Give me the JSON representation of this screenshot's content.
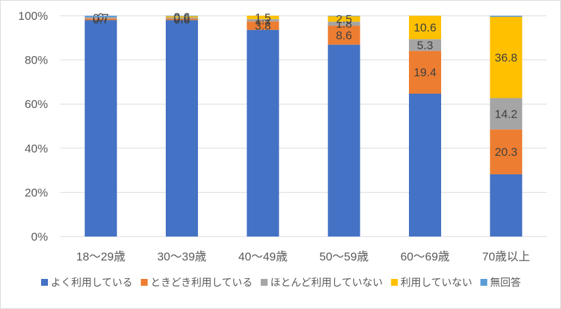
{
  "chart_data": {
    "type": "bar",
    "stacked": true,
    "percent": true,
    "categories": [
      "18～29歳",
      "30～39歳",
      "40～49歳",
      "50～59歳",
      "60～69歳",
      "70歳以上"
    ],
    "series": [
      {
        "name": "よく利用している",
        "color": "#4472C4",
        "values": [
          98.0,
          98.0,
          93.6,
          86.9,
          64.7,
          28.2
        ],
        "labels": [
          "",
          "",
          "",
          "",
          "",
          ""
        ]
      },
      {
        "name": "ときどき利用している",
        "color": "#ED7D31",
        "values": [
          0.7,
          0.6,
          3.8,
          8.6,
          19.4,
          20.3
        ],
        "labels": [
          "0.7",
          "0.6",
          "3.8",
          "8.6",
          "19.4",
          "20.3"
        ]
      },
      {
        "name": "ほとんど利用していない",
        "color": "#A5A5A5",
        "values": [
          0.7,
          0.6,
          1.1,
          1.8,
          5.3,
          14.2
        ],
        "labels": [
          "0.7",
          "0.6",
          "1.1",
          "1.8",
          "5.3",
          "14.2"
        ]
      },
      {
        "name": "利用していない",
        "color": "#FFC000",
        "values": [
          0.0,
          0.6,
          1.5,
          2.5,
          10.6,
          36.8
        ],
        "labels": [
          "0",
          "0.6",
          "1.5",
          "2.5",
          "10.6",
          "36.8"
        ]
      },
      {
        "name": "無回答",
        "color": "#5B9BD5",
        "values": [
          0.6,
          0.2,
          0.0,
          0.2,
          0.0,
          0.5
        ],
        "labels": [
          "",
          "",
          "",
          "",
          "",
          ""
        ]
      }
    ],
    "yticks": [
      "0%",
      "20%",
      "40%",
      "60%",
      "80%",
      "100%"
    ],
    "ylim": [
      0,
      100
    ],
    "grid": true,
    "legend": "bottom"
  }
}
